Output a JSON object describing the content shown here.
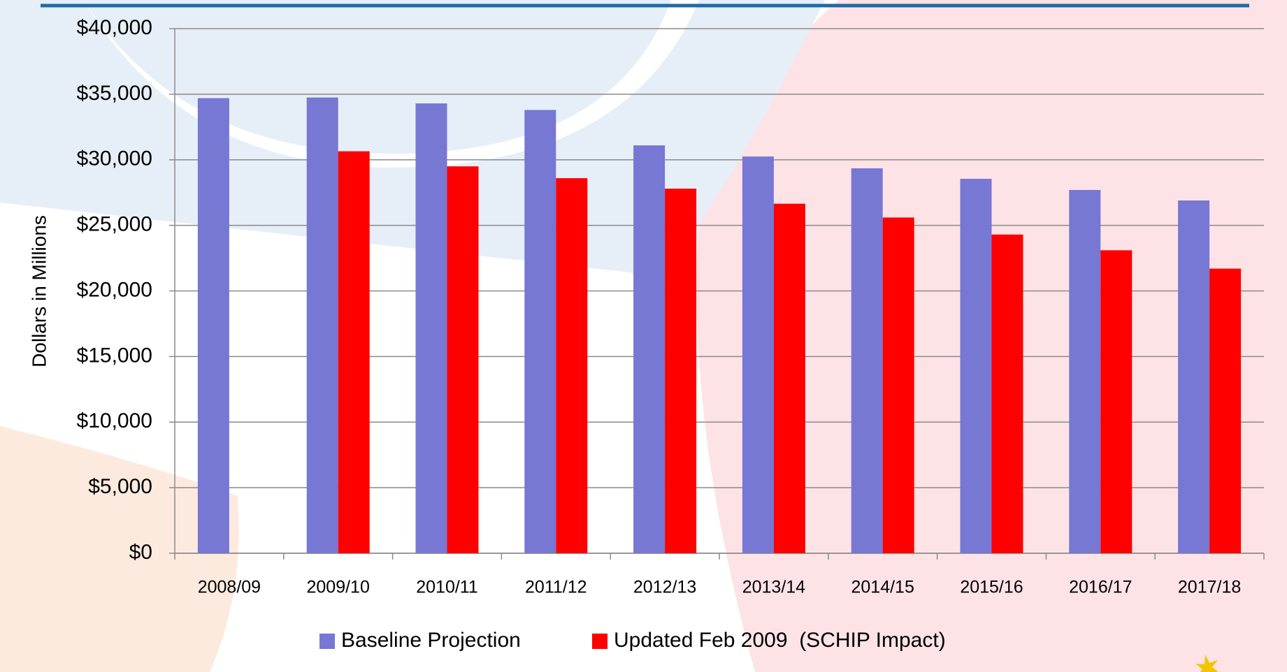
{
  "chart_data": {
    "type": "bar",
    "y_label": "Dollars in Millions",
    "categories": [
      "2008/09",
      "2009/10",
      "2010/11",
      "2011/12",
      "2012/13",
      "2013/14",
      "2014/15",
      "2015/16",
      "2016/17",
      "2017/18"
    ],
    "series": [
      {
        "name": "Baseline Projection",
        "color": "#7777d4",
        "values": [
          34700,
          34750,
          34300,
          33800,
          31100,
          30250,
          29350,
          28550,
          27700,
          26900
        ]
      },
      {
        "name": "Updated Feb 2009  (SCHIP Impact)",
        "color": "#ff0000",
        "values": [
          null,
          30650,
          29500,
          28600,
          27800,
          26650,
          25600,
          24300,
          23100,
          21700
        ]
      }
    ],
    "ylim": [
      0,
      40000
    ],
    "yticks": [
      {
        "value": 0,
        "label": "$0"
      },
      {
        "value": 5000,
        "label": "$5,000"
      },
      {
        "value": 10000,
        "label": "$10,000"
      },
      {
        "value": 15000,
        "label": "$15,000"
      },
      {
        "value": 20000,
        "label": "$20,000"
      },
      {
        "value": 25000,
        "label": "$25,000"
      },
      {
        "value": 30000,
        "label": "$30,000"
      },
      {
        "value": 35000,
        "label": "$35,000"
      },
      {
        "value": 40000,
        "label": "$40,000"
      }
    ],
    "grid": true,
    "legend": "bottom"
  }
}
